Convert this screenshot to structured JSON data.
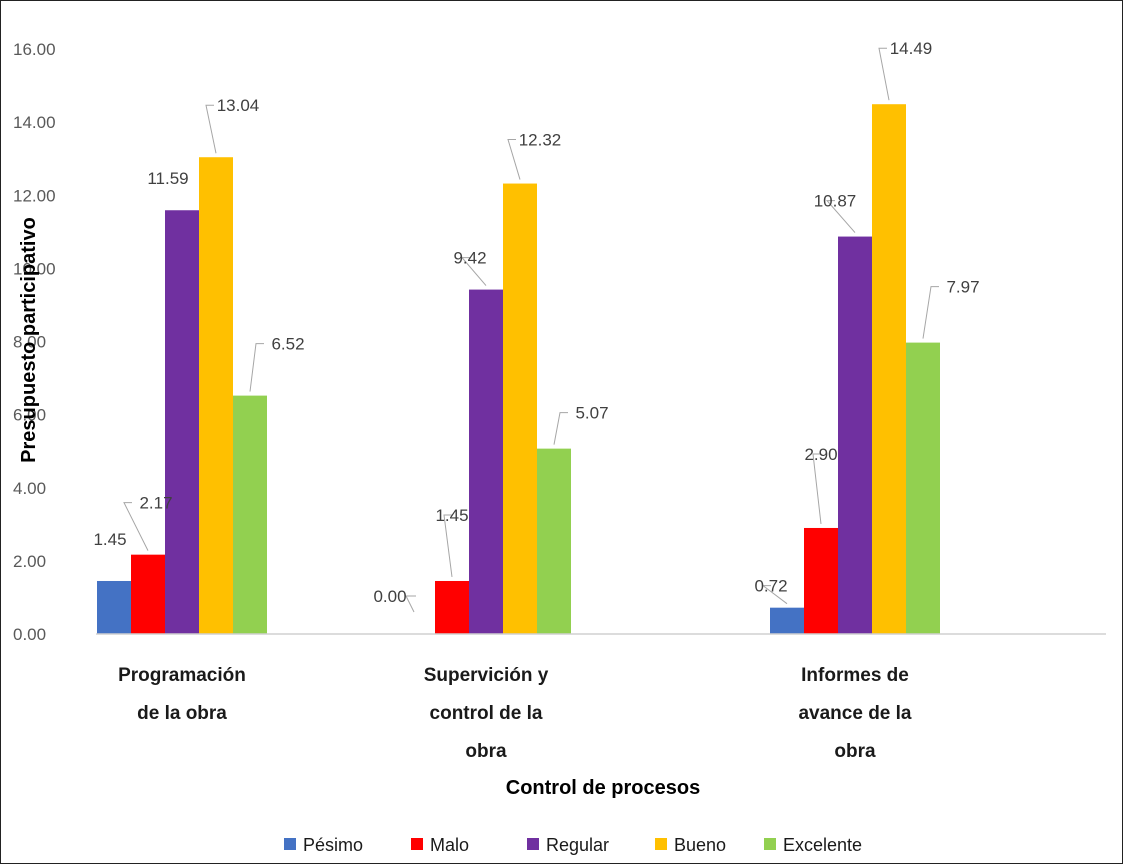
{
  "chart_data": {
    "type": "bar",
    "categories": [
      [
        "Programación",
        "de la obra"
      ],
      [
        "Supervición y",
        "control de la",
        "obra"
      ],
      [
        "Informes  de",
        "avance de la",
        "obra"
      ]
    ],
    "series": [
      {
        "name": "Pésimo",
        "color": "#4472C4",
        "values": [
          1.45,
          0.0,
          0.72
        ]
      },
      {
        "name": "Malo",
        "color": "#FF0000",
        "values": [
          2.17,
          1.45,
          2.9
        ]
      },
      {
        "name": "Regular",
        "color": "#7030A0",
        "values": [
          11.59,
          9.42,
          10.87
        ]
      },
      {
        "name": "Bueno",
        "color": "#FFC000",
        "values": [
          13.04,
          12.32,
          14.49
        ]
      },
      {
        "name": "Excelente",
        "color": "#92D050",
        "values": [
          6.52,
          5.07,
          7.97
        ]
      }
    ],
    "data_labels": [
      [
        "1.45",
        "0.00",
        "0.72"
      ],
      [
        "2.17",
        "1.45",
        "2.90"
      ],
      [
        "11.59",
        "9.42",
        "10.87"
      ],
      [
        "13.04",
        "12.32",
        "14.49"
      ],
      [
        "6.52",
        "5.07",
        "7.97"
      ]
    ],
    "yticks": [
      "0.00",
      "2.00",
      "4.00",
      "6.00",
      "8.00",
      "10.00",
      "12.00",
      "14.00",
      "16.00"
    ],
    "ylim": [
      0,
      16
    ],
    "xlabel": "Control de procesos",
    "ylabel": "Presupuesto participativo",
    "legend_position": "bottom",
    "grid": false
  }
}
